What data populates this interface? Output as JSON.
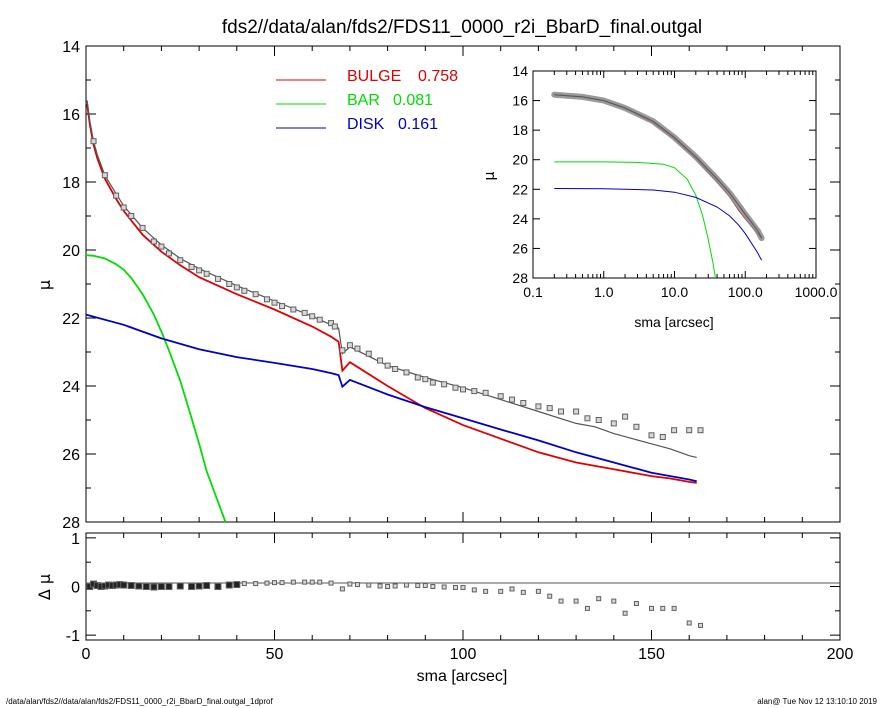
{
  "title": "fds2//data/alan/fds2/FDS11_0000_r2i_BbarD_final.outgal",
  "footer_left": "/data/alan/fds2//data/alan/fds2/FDS11_0000_r2i_BbarD_final.outgal_1dprof",
  "footer_right": "alan@  Tue Nov 12 13:10:10 2019",
  "colors": {
    "bulge": "#e00000",
    "bar": "#00dd00",
    "disk": "#0000c8",
    "total": "#555555",
    "points": "#606060"
  },
  "chart_data": [
    {
      "type": "line",
      "panel": "main",
      "title": "fds2//data/alan/fds2/FDS11_0000_r2i_BbarD_final.outgal",
      "xlabel": "",
      "ylabel": "μ",
      "xlim": [
        0,
        200
      ],
      "ylim": [
        28,
        14
      ],
      "xticks": [
        0,
        50,
        100,
        150,
        200
      ],
      "yticks": [
        14,
        16,
        18,
        20,
        22,
        24,
        26,
        28
      ],
      "legend": [
        {
          "label": "BULGE",
          "value": "0.758",
          "color": "#e00000"
        },
        {
          "label": "BAR",
          "value": "0.081",
          "color": "#00dd00"
        },
        {
          "label": "DISK",
          "value": "0.161",
          "color": "#0000c8"
        }
      ],
      "series": [
        {
          "name": "BULGE",
          "x": [
            0.3,
            1,
            2,
            3,
            5,
            8,
            10,
            15,
            20,
            25,
            30,
            40,
            50,
            60,
            65,
            67,
            68,
            70,
            80,
            90,
            100,
            110,
            120,
            130,
            140,
            150,
            155,
            160,
            162
          ],
          "y": [
            15.7,
            16.3,
            16.9,
            17.3,
            17.9,
            18.5,
            18.85,
            19.55,
            20.05,
            20.45,
            20.8,
            21.3,
            21.75,
            22.25,
            22.55,
            22.7,
            23.55,
            23.3,
            24.0,
            24.65,
            25.15,
            25.55,
            25.95,
            26.25,
            26.45,
            26.65,
            26.72,
            26.82,
            26.85
          ]
        },
        {
          "name": "BAR",
          "x": [
            0,
            2,
            5,
            8,
            10,
            12,
            15,
            18,
            20,
            22,
            25,
            28,
            30,
            32,
            35,
            37
          ],
          "y": [
            20.15,
            20.17,
            20.25,
            20.42,
            20.58,
            20.82,
            21.3,
            21.9,
            22.4,
            22.95,
            23.85,
            24.95,
            25.7,
            26.5,
            27.4,
            28.0
          ]
        },
        {
          "name": "DISK",
          "x": [
            0,
            10,
            20,
            30,
            40,
            50,
            60,
            65,
            67,
            68,
            70,
            80,
            90,
            100,
            110,
            120,
            130,
            140,
            150,
            155,
            160,
            162
          ],
          "y": [
            21.9,
            22.2,
            22.6,
            22.92,
            23.15,
            23.32,
            23.5,
            23.62,
            23.68,
            24.02,
            23.82,
            24.25,
            24.62,
            24.95,
            25.28,
            25.6,
            25.95,
            26.25,
            26.55,
            26.65,
            26.75,
            26.8
          ]
        },
        {
          "name": "",
          "x": [
            0.3,
            1,
            2,
            3,
            5,
            8,
            10,
            15,
            20,
            25,
            30,
            40,
            50,
            60,
            65,
            67,
            68,
            70,
            80,
            90,
            100,
            110,
            120,
            130,
            135,
            140,
            145,
            150,
            155,
            160,
            162
          ],
          "y": [
            15.6,
            16.2,
            16.8,
            17.2,
            17.8,
            18.35,
            18.7,
            19.35,
            19.85,
            20.25,
            20.55,
            21.05,
            21.5,
            21.95,
            22.2,
            22.3,
            23.05,
            22.85,
            23.4,
            23.75,
            24.05,
            24.4,
            24.75,
            25.1,
            25.2,
            25.4,
            25.55,
            25.7,
            25.85,
            26.05,
            26.1
          ]
        },
        {
          "name": "",
          "type": "scatter",
          "x": [
            2,
            5,
            8,
            10,
            12,
            15,
            18,
            20,
            22,
            25,
            28,
            30,
            32,
            35,
            38,
            40,
            42,
            45,
            48,
            50,
            52,
            55,
            58,
            60,
            62,
            65,
            66,
            68,
            70,
            72,
            75,
            78,
            80,
            82,
            85,
            88,
            90,
            92,
            95,
            98,
            100,
            103,
            106,
            110,
            113,
            116,
            120,
            123,
            126,
            130,
            133,
            136,
            140,
            143,
            146,
            150,
            153,
            156,
            160,
            163
          ],
          "y": [
            16.8,
            17.8,
            18.4,
            18.75,
            19.0,
            19.35,
            19.75,
            19.9,
            20.1,
            20.3,
            20.5,
            20.6,
            20.7,
            20.85,
            21.0,
            21.1,
            21.2,
            21.3,
            21.45,
            21.55,
            21.65,
            21.75,
            21.85,
            21.95,
            22.05,
            22.15,
            22.25,
            22.95,
            22.8,
            22.9,
            23.05,
            23.25,
            23.4,
            23.5,
            23.6,
            23.75,
            23.8,
            23.9,
            23.95,
            24.05,
            24.1,
            24.15,
            24.2,
            24.3,
            24.4,
            24.5,
            24.6,
            24.65,
            24.75,
            24.75,
            24.95,
            25.0,
            25.1,
            24.9,
            25.2,
            25.45,
            25.5,
            25.3,
            25.3,
            25.3
          ]
        }
      ]
    },
    {
      "type": "scatter",
      "panel": "residual",
      "xlabel": "sma [arcsec]",
      "ylabel": "Δ μ",
      "xlim": [
        0,
        200
      ],
      "ylim": [
        -1.1,
        1.1
      ],
      "xticks": [
        0,
        50,
        100,
        150,
        200
      ],
      "yticks": [
        -1,
        0,
        1
      ],
      "series": [
        {
          "name": "",
          "x": [
            1,
            2,
            3,
            4,
            5,
            6,
            7,
            8,
            9,
            10,
            12,
            14,
            16,
            18,
            20,
            22,
            25,
            28,
            30,
            32,
            35,
            38,
            40,
            42,
            45,
            48,
            50,
            52,
            55,
            58,
            60,
            62,
            65,
            68,
            70,
            72,
            75,
            78,
            80,
            82,
            85,
            88,
            90,
            92,
            95,
            98,
            100,
            103,
            106,
            110,
            113,
            116,
            120,
            123,
            126,
            130,
            133,
            136,
            140,
            143,
            146,
            150,
            153,
            156,
            160,
            163
          ],
          "y": [
            0.0,
            0.05,
            0.02,
            0.0,
            0.01,
            0.03,
            0.02,
            0.03,
            0.04,
            0.03,
            0.02,
            0.01,
            0.0,
            -0.01,
            0.0,
            0.0,
            0.01,
            0.0,
            0.01,
            0.02,
            0.0,
            0.03,
            0.04,
            0.06,
            0.06,
            0.07,
            0.08,
            0.08,
            0.09,
            0.09,
            0.09,
            0.09,
            0.07,
            -0.05,
            0.05,
            0.04,
            0.03,
            0.01,
            0.0,
            0.01,
            0.03,
            0.02,
            0.02,
            0.0,
            -0.01,
            -0.02,
            -0.02,
            -0.07,
            -0.1,
            -0.1,
            -0.05,
            -0.12,
            -0.1,
            -0.2,
            -0.3,
            -0.3,
            -0.45,
            -0.25,
            -0.3,
            -0.55,
            -0.35,
            -0.45,
            -0.45,
            -0.45,
            -0.75,
            -0.8
          ]
        }
      ]
    },
    {
      "type": "line",
      "panel": "inset",
      "xscale": "log",
      "xlabel": "sma [arcsec]",
      "ylabel": "μ",
      "xlim": [
        0.1,
        1000
      ],
      "ylim": [
        28,
        14
      ],
      "xticks": [
        0.1,
        1.0,
        10.0,
        100.0,
        1000.0
      ],
      "xticklabels": [
        "0.1",
        "1.0",
        "10.0",
        "100.0",
        "1000.0"
      ],
      "yticks": [
        14,
        16,
        18,
        20,
        22,
        24,
        26,
        28
      ],
      "series": [
        {
          "name": "BULGE",
          "x": [
            0.2,
            0.5,
            1,
            2,
            5,
            10,
            20,
            40,
            60,
            80,
            100,
            150,
            170
          ],
          "y": [
            15.6,
            15.75,
            16.0,
            16.5,
            17.5,
            18.6,
            19.9,
            21.5,
            22.5,
            23.4,
            24.0,
            25.0,
            25.3
          ]
        },
        {
          "name": "BAR",
          "x": [
            0.2,
            1,
            3,
            7,
            10,
            15,
            20,
            25,
            30,
            35,
            38
          ],
          "y": [
            20.15,
            20.15,
            20.18,
            20.3,
            20.55,
            21.3,
            22.4,
            23.8,
            25.4,
            27.0,
            28.0
          ]
        },
        {
          "name": "DISK",
          "x": [
            0.2,
            1,
            5,
            10,
            20,
            40,
            60,
            80,
            100,
            150,
            170
          ],
          "y": [
            21.95,
            21.96,
            22.05,
            22.2,
            22.55,
            23.2,
            23.8,
            24.4,
            25.0,
            26.3,
            26.8
          ]
        },
        {
          "name": "",
          "x": [
            0.2,
            0.5,
            1,
            2,
            5,
            10,
            20,
            40,
            60,
            80,
            100,
            150,
            170
          ],
          "y": [
            15.6,
            15.75,
            16.0,
            16.5,
            17.4,
            18.5,
            19.8,
            21.3,
            22.25,
            23.05,
            23.7,
            24.8,
            25.3
          ]
        }
      ]
    }
  ]
}
